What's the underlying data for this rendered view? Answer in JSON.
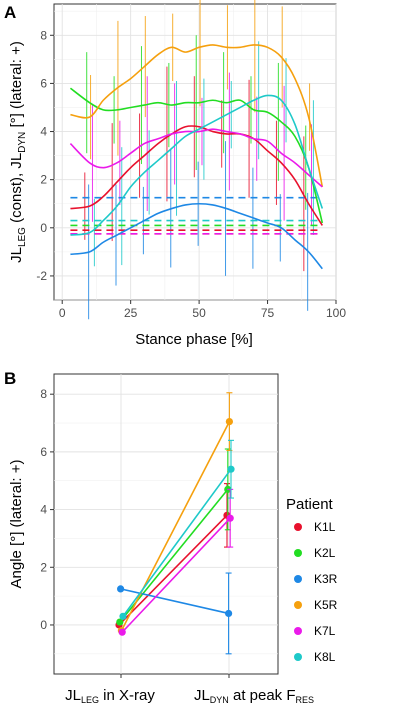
{
  "panels": {
    "a": "A",
    "b": "B"
  },
  "colors": {
    "K1L": "#e8112d",
    "K2L": "#22dd22",
    "K3R": "#1e88e5",
    "K5R": "#f5a00e",
    "K7L": "#ea1aea",
    "K8L": "#1ec9c9"
  },
  "chart_data": [
    {
      "type": "line",
      "panel": "A",
      "xlabel": "Stance phase [%]",
      "ylabel": {
        "p1": "JL",
        "s1": "LEG",
        "p2": " (const), JL",
        "s2": "DYN",
        "p3": " [°] (lateral: +)"
      },
      "xlim": [
        -3,
        100
      ],
      "ylim": [
        -3,
        9.3
      ],
      "xticks": [
        0,
        25,
        50,
        75,
        100
      ],
      "yticks": [
        -2,
        0,
        2,
        4,
        6,
        8
      ],
      "grid": true,
      "x": [
        3,
        10,
        15,
        20,
        25,
        30,
        35,
        40,
        45,
        50,
        55,
        60,
        65,
        70,
        75,
        80,
        85,
        90,
        95
      ],
      "series": [
        {
          "name": "K1L",
          "constant": -0.1,
          "errbar_x": [],
          "values": [
            0.8,
            0.9,
            1.3,
            1.9,
            2.5,
            3.0,
            3.5,
            3.9,
            4.2,
            4.2,
            4.0,
            3.9,
            3.9,
            3.7,
            3.2,
            2.7,
            2.0,
            1.0,
            0.1
          ]
        },
        {
          "name": "K2L",
          "constant": 0.1,
          "errbar_x": [],
          "values": [
            5.8,
            5.2,
            4.9,
            4.9,
            5.0,
            5.1,
            5.2,
            5.1,
            5.2,
            5.2,
            5.3,
            5.2,
            5.3,
            4.9,
            4.8,
            4.4,
            3.8,
            2.5,
            0.2
          ]
        },
        {
          "name": "K3R",
          "constant": 1.25,
          "errbar_x": [],
          "values": [
            -1.1,
            -1.0,
            -0.6,
            -0.3,
            0.0,
            0.3,
            0.6,
            0.8,
            0.95,
            1.0,
            0.95,
            0.8,
            0.6,
            0.4,
            0.2,
            0.0,
            -0.5,
            -1.0,
            -1.7
          ]
        },
        {
          "name": "K5R",
          "constant": -0.25,
          "errbar_x": [],
          "values": [
            4.7,
            4.6,
            5.3,
            5.8,
            6.2,
            6.7,
            7.2,
            7.5,
            7.3,
            7.5,
            7.6,
            7.5,
            7.5,
            7.6,
            7.5,
            7.1,
            6.2,
            4.6,
            1.7
          ]
        },
        {
          "name": "K7L",
          "constant": -0.25,
          "errbar_x": [],
          "values": [
            3.5,
            2.7,
            2.5,
            2.7,
            3.1,
            3.5,
            3.7,
            3.9,
            4.0,
            4.0,
            4.1,
            4.0,
            3.9,
            3.7,
            3.6,
            3.1,
            2.7,
            2.2,
            1.7
          ]
        },
        {
          "name": "K8L",
          "constant": 0.3,
          "errbar_x": [],
          "values": [
            -0.3,
            -0.2,
            0.3,
            0.9,
            1.7,
            2.3,
            2.8,
            3.3,
            3.8,
            4.1,
            4.4,
            4.7,
            5.0,
            5.3,
            5.5,
            5.3,
            4.3,
            2.5,
            0.8
          ]
        }
      ]
    },
    {
      "type": "line",
      "panel": "B",
      "ylabel": "Angle [°] (lateral: +)",
      "categories": [
        {
          "p1": "JL",
          "s1": "LEG",
          "p2": " in X-ray"
        },
        {
          "p1": "JL",
          "s1": "DYN",
          "p2": " at peak F",
          "s2": "RES"
        }
      ],
      "ylim": [
        -1.7,
        8.7
      ],
      "yticks": [
        0,
        2,
        4,
        6,
        8
      ],
      "grid": true,
      "legend": {
        "title": "Patient",
        "position": "right"
      },
      "series": [
        {
          "name": "K1L",
          "values": [
            0.0,
            3.8
          ],
          "err": [
            0.0,
            1.1
          ]
        },
        {
          "name": "K2L",
          "values": [
            0.1,
            4.7
          ],
          "err": [
            0.0,
            1.4
          ]
        },
        {
          "name": "K3R",
          "values": [
            1.25,
            0.4
          ],
          "err": [
            0.0,
            1.4
          ]
        },
        {
          "name": "K5R",
          "values": [
            -0.2,
            7.05
          ],
          "err": [
            0.0,
            1.0
          ]
        },
        {
          "name": "K7L",
          "values": [
            -0.25,
            3.7
          ],
          "err": [
            0.0,
            1.0
          ]
        },
        {
          "name": "K8L",
          "values": [
            0.3,
            5.4
          ],
          "err": [
            0.0,
            1.0
          ]
        }
      ]
    }
  ]
}
